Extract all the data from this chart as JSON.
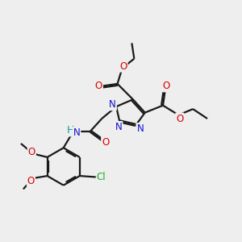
{
  "bg_color": "#eeeeee",
  "bond_color": "#1a1a1a",
  "bond_width": 1.6,
  "atom_colors": {
    "O": "#dd0000",
    "N": "#1111cc",
    "Cl": "#22aa22",
    "H": "#119999",
    "C": "#1a1a1a"
  },
  "font_size_atom": 8.5,
  "figsize": [
    3.0,
    3.0
  ],
  "dpi": 100,
  "xlim": [
    0,
    10
  ],
  "ylim": [
    0,
    10
  ]
}
